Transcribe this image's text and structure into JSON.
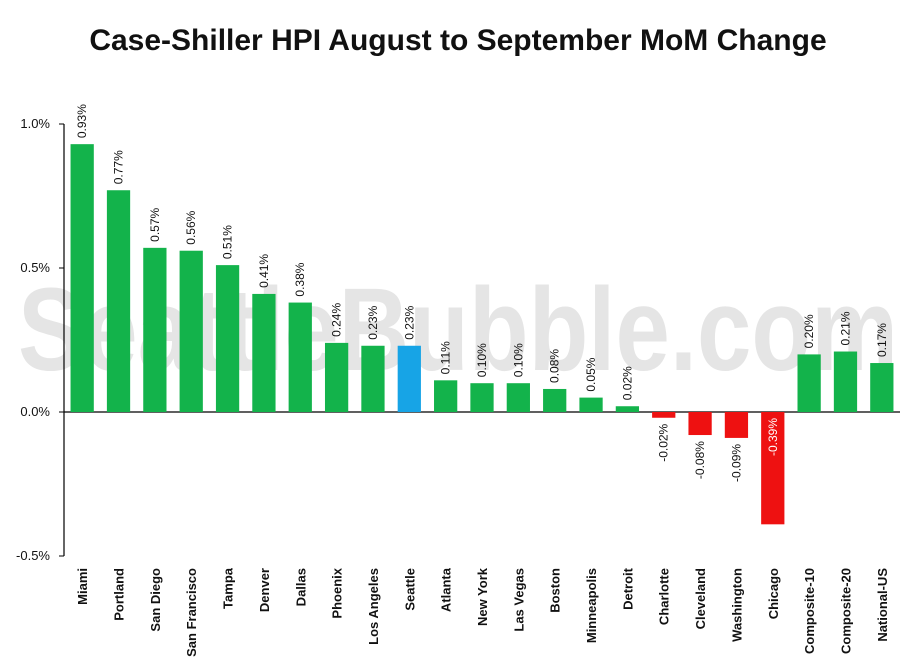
{
  "chart_data": {
    "type": "bar",
    "title": "Case-Shiller HPI August to September MoM Change",
    "xlabel": "",
    "ylabel": "",
    "watermark": "SeattleBubble.com",
    "ylim": [
      -0.5,
      1.0
    ],
    "yticks": [
      {
        "value": 1.0,
        "label": "1.0%"
      },
      {
        "value": 0.5,
        "label": "0.5%"
      },
      {
        "value": 0.0,
        "label": "0.0%"
      },
      {
        "value": -0.5,
        "label": "-0.5%"
      }
    ],
    "grid": false,
    "legend": "none",
    "colors": {
      "positive": "#13b34b",
      "negative": "#ee1111",
      "highlight": "#17a4e6"
    },
    "categories": [
      "Miami",
      "Portland",
      "San Diego",
      "San Francisco",
      "Tampa",
      "Denver",
      "Dallas",
      "Phoenix",
      "Los Angeles",
      "Seattle",
      "Atlanta",
      "New York",
      "Las Vegas",
      "Boston",
      "Minneapolis",
      "Detroit",
      "Charlotte",
      "Cleveland",
      "Washington",
      "Chicago",
      "Composite-10",
      "Composite-20",
      "National-US"
    ],
    "values": [
      0.93,
      0.77,
      0.57,
      0.56,
      0.51,
      0.41,
      0.38,
      0.24,
      0.23,
      0.23,
      0.11,
      0.1,
      0.1,
      0.08,
      0.05,
      0.02,
      -0.02,
      -0.08,
      -0.09,
      -0.39,
      0.2,
      0.21,
      0.17
    ],
    "data_labels": [
      "0.93%",
      "0.77%",
      "0.57%",
      "0.56%",
      "0.51%",
      "0.41%",
      "0.38%",
      "0.24%",
      "0.23%",
      "0.23%",
      "0.11%",
      "0.10%",
      "0.10%",
      "0.08%",
      "0.05%",
      "0.02%",
      "-0.02%",
      "-0.08%",
      "-0.09%",
      "-0.39%",
      "0.20%",
      "0.21%",
      "0.17%"
    ],
    "highlight": "Seattle"
  }
}
